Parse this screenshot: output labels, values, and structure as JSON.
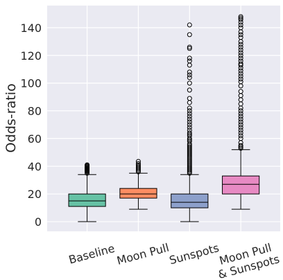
{
  "chart_data": {
    "type": "box",
    "ylabel": "Odds-ratio",
    "xlabel": "",
    "ylim": [
      -7,
      156
    ],
    "yticks": [
      0,
      20,
      40,
      60,
      80,
      100,
      120,
      140
    ],
    "grid": true,
    "categories": [
      {
        "label_lines": [
          "Baseline"
        ]
      },
      {
        "label_lines": [
          "Moon Pull"
        ]
      },
      {
        "label_lines": [
          "Sunspots"
        ]
      },
      {
        "label_lines": [
          "Moon Pull",
          "& Sunspots"
        ]
      }
    ],
    "boxes": [
      {
        "color": "#66c2a5",
        "whisker_low": 0,
        "q1": 11,
        "median": 15,
        "q3": 20,
        "whisker_high": 34,
        "outliers": [
          35,
          36,
          36.5,
          37,
          37.5,
          38,
          38.5,
          39,
          39.5,
          40,
          40.5,
          41
        ]
      },
      {
        "color": "#fc8d62",
        "whisker_low": 9,
        "q1": 17,
        "median": 20,
        "q3": 24,
        "whisker_high": 35,
        "outliers": [
          36,
          37,
          38,
          39,
          40,
          41,
          42,
          43.5
        ]
      },
      {
        "color": "#8da0cb",
        "whisker_low": 0,
        "q1": 10,
        "median": 14,
        "q3": 20,
        "whisker_high": 34,
        "outliers": [
          35,
          36,
          37,
          38,
          39,
          40,
          41,
          42,
          43,
          44,
          45,
          46,
          47,
          48,
          49,
          50,
          51,
          52,
          53,
          54,
          55,
          56,
          58,
          59,
          60,
          62,
          63,
          64,
          66,
          68,
          70,
          72,
          74,
          76,
          78,
          80,
          82,
          86,
          89,
          95,
          100,
          104,
          106,
          108,
          113,
          116,
          118,
          125,
          126,
          135,
          142
        ]
      },
      {
        "color": "#e78ac3",
        "whisker_low": 9,
        "q1": 20,
        "median": 27,
        "q3": 33,
        "whisker_high": 52,
        "outliers": [
          53,
          54,
          55,
          57,
          60,
          62,
          64,
          66,
          68,
          70,
          72,
          74,
          76,
          78,
          80,
          82,
          85,
          88,
          91,
          94,
          98,
          101,
          103,
          105,
          107,
          109,
          111,
          113,
          114,
          116,
          118,
          120,
          122,
          124,
          126,
          128,
          130,
          133,
          135,
          137,
          140,
          142,
          144,
          146,
          147,
          148
        ]
      }
    ]
  }
}
